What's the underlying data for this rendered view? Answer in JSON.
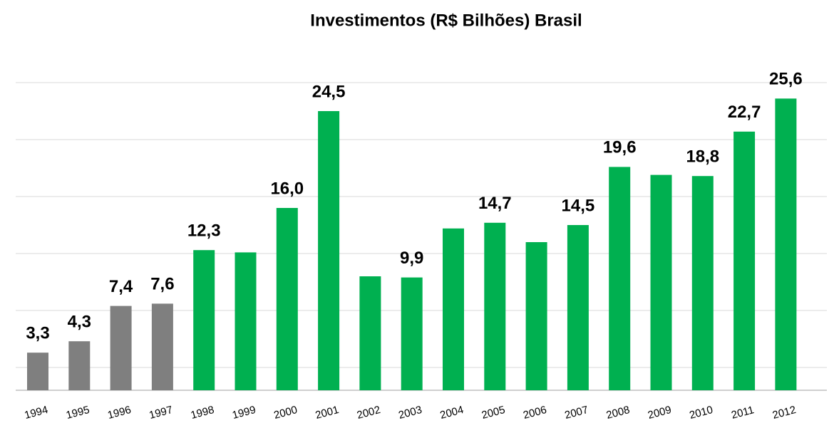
{
  "chart_data": {
    "type": "bar",
    "title": "Investimentos  (R$ Bilhões) Brasil",
    "categories": [
      "1994",
      "1995",
      "1996",
      "1997",
      "1998",
      "1999",
      "2000",
      "2001",
      "2002",
      "2003",
      "2004",
      "2005",
      "2006",
      "2007",
      "2008",
      "2009",
      "2010",
      "2011",
      "2012"
    ],
    "values": [
      3.3,
      4.3,
      7.4,
      7.6,
      12.3,
      12.1,
      16.0,
      24.5,
      10.0,
      9.9,
      14.2,
      14.7,
      13.0,
      14.5,
      19.6,
      18.9,
      18.8,
      22.7,
      25.6
    ],
    "value_labels": [
      "3,3",
      "4,3",
      "7,4",
      "7,6",
      "12,3",
      null,
      "16,0",
      "24,5",
      null,
      "9,9",
      null,
      "14,7",
      null,
      "14,5",
      "19,6",
      null,
      "18,8",
      "22,7",
      "25,6"
    ],
    "colors": [
      "#7f7f7f",
      "#7f7f7f",
      "#7f7f7f",
      "#7f7f7f",
      "#00b050",
      "#00b050",
      "#00b050",
      "#00b050",
      "#00b050",
      "#00b050",
      "#00b050",
      "#00b050",
      "#00b050",
      "#00b050",
      "#00b050",
      "#00b050",
      "#00b050",
      "#00b050",
      "#00b050"
    ],
    "ylim": [
      0,
      27
    ],
    "yticks": [
      2,
      7,
      12,
      17,
      22,
      27
    ],
    "grid": true
  }
}
